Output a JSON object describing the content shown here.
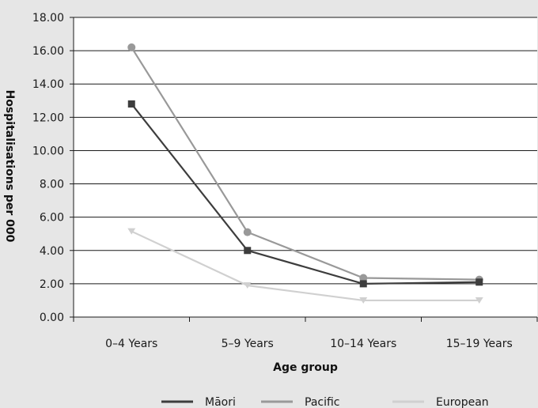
{
  "chart_data": {
    "type": "line",
    "title": "",
    "xlabel": "Age group",
    "ylabel": "Hospitalisations per 000",
    "categories": [
      "0–4 Years",
      "5–9 Years",
      "10–14 Years",
      "15–19 Years"
    ],
    "ylim": [
      0,
      18
    ],
    "y_ticks": [
      "0.00",
      "2.00",
      "4.00",
      "6.00",
      "8.00",
      "10.00",
      "12.00",
      "14.00",
      "16.00",
      "18.00"
    ],
    "grid": true,
    "legend_position": "bottom",
    "series": [
      {
        "name": "Māori",
        "values": [
          12.8,
          4.0,
          2.0,
          2.1
        ],
        "color": "#3d3d3d",
        "marker": "square"
      },
      {
        "name": "Pacific",
        "values": [
          16.2,
          5.1,
          2.35,
          2.25
        ],
        "color": "#999999",
        "marker": "circle"
      },
      {
        "name": "European",
        "values": [
          5.15,
          1.9,
          1.0,
          1.0
        ],
        "color": "#d0d0d0",
        "marker": "triangle-down"
      }
    ]
  }
}
